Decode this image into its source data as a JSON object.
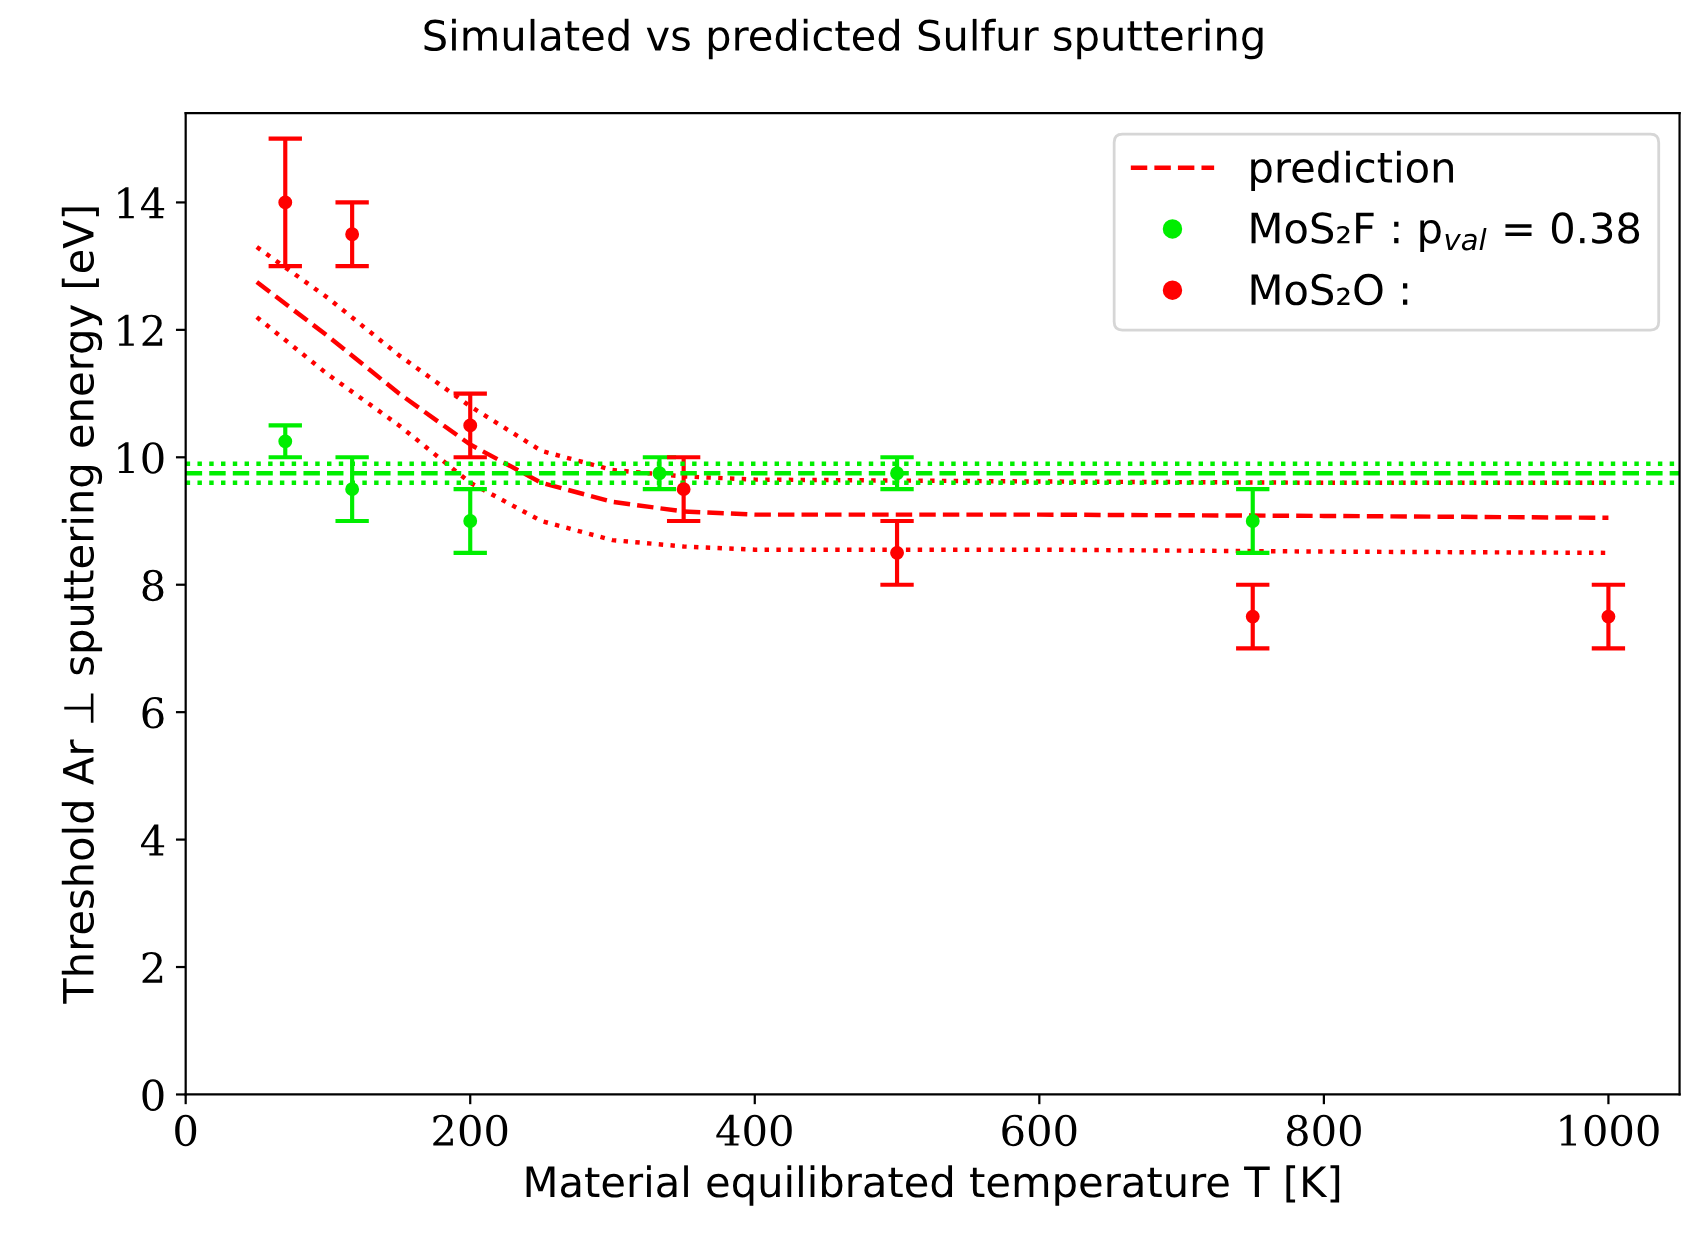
{
  "chart_data": {
    "type": "scatter",
    "title": "Simulated vs predicted Sulfur sputtering",
    "xlabel": "Material equilibrated temperature T [K]",
    "ylabel": "Threshold Ar ⊥ sputtering energy [eV]",
    "xlim": [
      0,
      1050
    ],
    "xticks": [
      0,
      200,
      400,
      600,
      800,
      1000
    ],
    "ylim": [
      0,
      15.4
    ],
    "yticks": [
      0,
      2,
      4,
      6,
      8,
      10,
      12,
      14
    ],
    "grid": false,
    "legend": "top right",
    "series": [
      {
        "name": "prediction",
        "type": "line",
        "line_style": "dashed",
        "color": "#ff0000",
        "x": [
          50,
          100,
          150,
          200,
          250,
          300,
          350,
          400,
          600,
          800,
          1000
        ],
        "values": [
          12.75,
          11.9,
          11.0,
          10.2,
          9.6,
          9.3,
          9.15,
          9.1,
          9.1,
          9.08,
          9.05
        ]
      },
      {
        "type": "line",
        "line_style": "dotted",
        "color": "#ff0000",
        "x": [
          50,
          100,
          150,
          200,
          250,
          300,
          350,
          400,
          600,
          800,
          1000
        ],
        "values": [
          13.3,
          12.5,
          11.6,
          10.8,
          10.1,
          9.8,
          9.7,
          9.65,
          9.62,
          9.6,
          9.6
        ]
      },
      {
        "type": "line",
        "line_style": "dotted",
        "color": "#ff0000",
        "x": [
          50,
          100,
          150,
          200,
          250,
          300,
          350,
          400,
          600,
          800,
          1000
        ],
        "values": [
          12.2,
          11.3,
          10.5,
          9.6,
          9.0,
          8.7,
          8.6,
          8.55,
          8.55,
          8.52,
          8.5
        ]
      },
      {
        "name": "MoS₂F : p$_{val}$ = 0.38",
        "marker": "circle",
        "color": "#00ee00",
        "x": [
          70,
          117,
          200,
          333,
          500,
          750
        ],
        "values": [
          10.25,
          9.5,
          9.0,
          9.75,
          9.75,
          9.0
        ],
        "errors": [
          0.25,
          0.5,
          0.5,
          0.25,
          0.25,
          0.5
        ]
      },
      {
        "name": "MoS₂O :",
        "marker": "circle",
        "color": "#ff0000",
        "x": [
          70,
          117,
          200,
          350,
          500,
          750,
          1000
        ],
        "values": [
          14.0,
          13.5,
          10.5,
          9.5,
          8.5,
          7.5,
          7.5
        ],
        "errors": [
          1.0,
          0.5,
          0.5,
          0.5,
          0.5,
          0.5,
          0.5
        ]
      }
    ],
    "ref_lines": [
      {
        "axis": "y",
        "value": 9.75,
        "color": "#00ee00",
        "line_style": "dashed"
      },
      {
        "axis": "y",
        "value": 9.9,
        "color": "#00ee00",
        "line_style": "dotted"
      },
      {
        "axis": "y",
        "value": 9.6,
        "color": "#00ee00",
        "line_style": "dotted"
      }
    ]
  }
}
